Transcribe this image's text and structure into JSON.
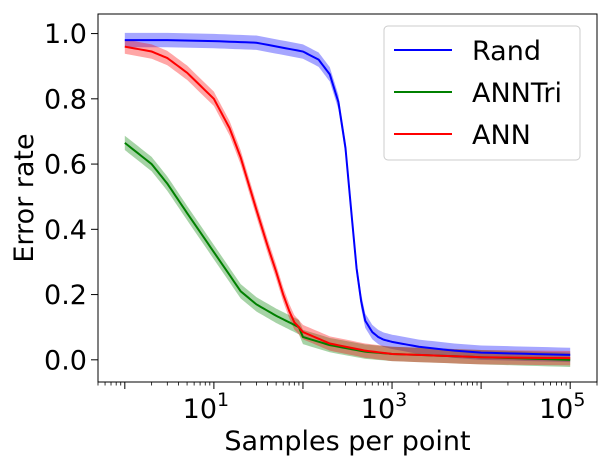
{
  "chart_data": {
    "type": "line",
    "xlabel": "Samples per point",
    "ylabel": "Error rate",
    "xscale": "log",
    "xlim": [
      0.5,
      200000
    ],
    "ylim": [
      -0.068,
      1.06
    ],
    "x_ticks": [
      {
        "value": 10,
        "base": "10",
        "exp": "1"
      },
      {
        "value": 1000,
        "base": "10",
        "exp": "3"
      },
      {
        "value": 100000,
        "base": "10",
        "exp": "5"
      }
    ],
    "y_ticks": [
      {
        "value": 0.0,
        "label": "0.0"
      },
      {
        "value": 0.2,
        "label": "0.2"
      },
      {
        "value": 0.4,
        "label": "0.4"
      },
      {
        "value": 0.6,
        "label": "0.6"
      },
      {
        "value": 0.8,
        "label": "0.8"
      },
      {
        "value": 1.0,
        "label": "1.0"
      }
    ],
    "legend_position": "top-right",
    "series": [
      {
        "name": "Rand",
        "color": "#0000ff",
        "x": [
          1,
          3,
          10,
          30,
          100,
          150,
          200,
          250,
          300,
          350,
          400,
          450,
          500,
          600,
          700,
          800,
          1000,
          2000,
          5000,
          10000,
          100000
        ],
        "y": [
          0.98,
          0.98,
          0.977,
          0.972,
          0.945,
          0.92,
          0.875,
          0.79,
          0.65,
          0.45,
          0.28,
          0.18,
          0.12,
          0.085,
          0.07,
          0.062,
          0.055,
          0.04,
          0.028,
          0.022,
          0.015
        ],
        "band": 0.022
      },
      {
        "name": "ANNTri",
        "color": "#008000",
        "x": [
          1,
          2,
          3,
          5,
          10,
          20,
          30,
          50,
          70,
          90,
          100,
          200,
          500,
          1000,
          10000,
          100000
        ],
        "y": [
          0.665,
          0.6,
          0.54,
          0.45,
          0.33,
          0.21,
          0.17,
          0.135,
          0.115,
          0.1,
          0.07,
          0.045,
          0.025,
          0.018,
          0.008,
          0.0
        ],
        "band": 0.022
      },
      {
        "name": "ANN",
        "color": "#ff0000",
        "x": [
          1,
          2,
          3,
          5,
          10,
          15,
          20,
          30,
          40,
          50,
          60,
          70,
          80,
          90,
          100,
          200,
          500,
          1000,
          10000,
          100000
        ],
        "y": [
          0.96,
          0.945,
          0.925,
          0.88,
          0.8,
          0.71,
          0.62,
          0.46,
          0.35,
          0.27,
          0.2,
          0.15,
          0.115,
          0.1,
          0.085,
          0.05,
          0.028,
          0.018,
          0.008,
          0.005
        ],
        "band": 0.022
      }
    ]
  }
}
